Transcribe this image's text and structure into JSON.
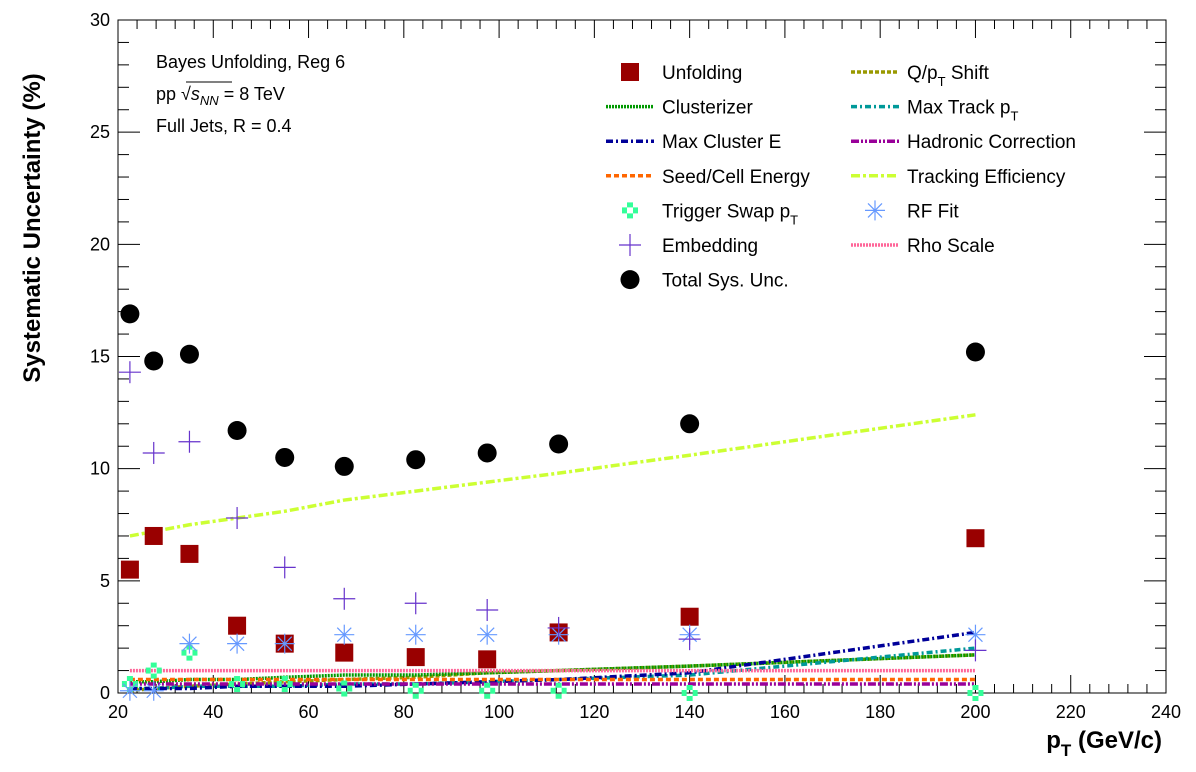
{
  "chart_data": {
    "type": "scatter",
    "title": "",
    "xlabel": "p_T (GeV/c)",
    "xlabel_main": "p",
    "xlabel_sub": "T",
    "xlabel_rest": " (GeV/c)",
    "ylabel": "Systematic Uncertainty (%)",
    "xlim": [
      20,
      240
    ],
    "ylim": [
      0,
      30
    ],
    "xticks": [
      20,
      40,
      60,
      80,
      100,
      120,
      140,
      160,
      180,
      200,
      220,
      240
    ],
    "yticks": [
      0,
      5,
      10,
      15,
      20,
      25,
      30
    ],
    "x_tick_labels": [
      "20",
      "40",
      "60",
      "80",
      "100",
      "120",
      "140",
      "160",
      "180",
      "200",
      "220",
      "240"
    ],
    "y_tick_labels": [
      "0",
      "5",
      "10",
      "15",
      "20",
      "25",
      "30"
    ],
    "grid": false,
    "legend_position": "top-right",
    "annotations": {
      "line1": "Bayes Unfolding, Reg 6",
      "line2_prefix": "pp ",
      "line2_sqrt": "s",
      "line2_sub": "NN",
      "line2_suffix": " = 8 TeV",
      "line3": "Full Jets, R = 0.4"
    },
    "x": [
      22.5,
      27.5,
      35,
      45,
      55,
      67.5,
      82.5,
      97.5,
      112.5,
      140,
      200
    ],
    "series": [
      {
        "name": "Unfolding",
        "label": "Unfolding",
        "kind": "marker",
        "marker": "square",
        "color": "#990000",
        "values": [
          5.5,
          7.0,
          6.2,
          3.0,
          2.2,
          1.8,
          1.6,
          1.5,
          2.7,
          3.4,
          6.9
        ]
      },
      {
        "name": "Q/p_T Shift",
        "label_main": "Q/p",
        "label_sub": "T",
        "label_rest": " Shift",
        "kind": "line",
        "dash": "4,2",
        "color": "#999900",
        "values": [
          0.1,
          0.2,
          0.3,
          0.4,
          0.5,
          0.6,
          0.7,
          0.9,
          1.0,
          1.2,
          1.7
        ]
      },
      {
        "name": "Clusterizer",
        "label": "Clusterizer",
        "kind": "line",
        "dash": "2,1",
        "color": "#009900",
        "values": [
          0.5,
          0.5,
          0.6,
          0.6,
          0.7,
          0.8,
          0.8,
          0.9,
          1.0,
          1.2,
          1.7
        ]
      },
      {
        "name": "Max Track p_T",
        "label_main": "Max Track p",
        "label_sub": "T",
        "label_rest": "",
        "kind": "line",
        "dash": "6,3,2,3",
        "color": "#009999",
        "values": [
          0.2,
          0.2,
          0.3,
          0.3,
          0.3,
          0.4,
          0.4,
          0.5,
          0.6,
          0.8,
          2.0
        ]
      },
      {
        "name": "Max Cluster E",
        "label": "Max Cluster E",
        "kind": "line",
        "dash": "7,3,2,3",
        "color": "#000099",
        "values": [
          0.2,
          0.2,
          0.2,
          0.3,
          0.3,
          0.3,
          0.4,
          0.5,
          0.6,
          0.9,
          2.7
        ]
      },
      {
        "name": "Hadronic Correction",
        "label": "Hadronic Correction",
        "kind": "line",
        "dash": "8,2,2,2,2,2",
        "color": "#990099",
        "values": [
          0.4,
          0.4,
          0.4,
          0.4,
          0.4,
          0.4,
          0.4,
          0.4,
          0.4,
          0.4,
          0.4
        ]
      },
      {
        "name": "Seed/Cell Energy",
        "label": "Seed/Cell Energy",
        "kind": "line",
        "dash": "5,3",
        "color": "#ff6600",
        "values": [
          0.6,
          0.6,
          0.6,
          0.6,
          0.6,
          0.6,
          0.6,
          0.6,
          0.6,
          0.6,
          0.6
        ]
      },
      {
        "name": "Tracking Efficiency",
        "label": "Tracking Efficiency",
        "kind": "line",
        "dash": "9,3,3,3",
        "color": "#ccff33",
        "values": [
          7.0,
          7.2,
          7.5,
          7.8,
          8.1,
          8.6,
          9.0,
          9.4,
          9.8,
          10.6,
          12.4
        ]
      },
      {
        "name": "Trigger Swap p_T",
        "label_main": "Trigger Swap p",
        "label_sub": "T",
        "label_rest": "",
        "kind": "marker",
        "marker": "cross-open",
        "color": "#33ff99",
        "values": [
          0.4,
          1.0,
          1.8,
          0.4,
          0.4,
          0.2,
          0.1,
          0.1,
          0.1,
          0.0,
          0.0
        ]
      },
      {
        "name": "RF Fit",
        "label": "RF Fit",
        "kind": "marker",
        "marker": "asterisk",
        "color": "#6699ff",
        "values": [
          0.1,
          0.1,
          2.2,
          2.2,
          2.2,
          2.6,
          2.6,
          2.6,
          2.6,
          2.6,
          2.6
        ]
      },
      {
        "name": "Embedding",
        "label": "Embedding",
        "kind": "marker",
        "marker": "plus",
        "color": "#6633cc",
        "values": [
          14.3,
          10.7,
          11.2,
          7.8,
          5.6,
          4.2,
          4.0,
          3.7,
          2.9,
          2.4,
          1.9
        ]
      },
      {
        "name": "Rho Scale",
        "label": "Rho Scale",
        "kind": "line",
        "dash": "2,1",
        "color": "#ff6699",
        "values": [
          1.0,
          1.0,
          1.0,
          1.0,
          1.0,
          1.0,
          1.0,
          1.0,
          1.0,
          1.0,
          1.0
        ]
      },
      {
        "name": "Total Sys. Unc.",
        "label": "Total Sys. Unc.",
        "kind": "marker",
        "marker": "circle",
        "color": "#000000",
        "values": [
          16.9,
          14.8,
          15.1,
          11.7,
          10.5,
          10.1,
          10.4,
          10.7,
          11.1,
          12.0,
          15.2
        ]
      }
    ],
    "legend_order": [
      "Unfolding",
      "Q/p_T Shift",
      "Clusterizer",
      "Max Track p_T",
      "Max Cluster E",
      "Hadronic Correction",
      "Seed/Cell Energy",
      "Tracking Efficiency",
      "Trigger Swap p_T",
      "RF Fit",
      "Embedding",
      "Rho Scale",
      "Total Sys. Unc."
    ]
  }
}
